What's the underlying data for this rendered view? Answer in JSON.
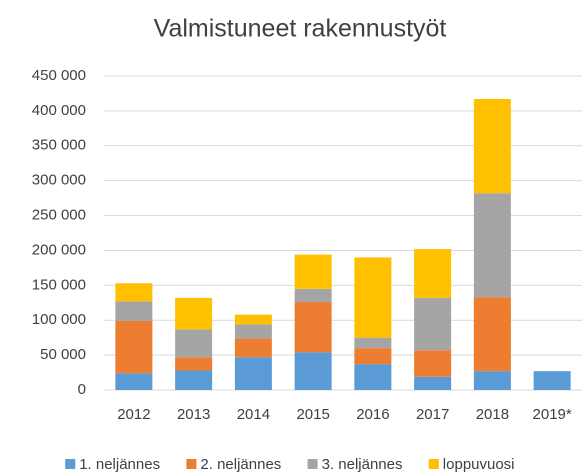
{
  "chart_data": {
    "type": "stacked_bar",
    "title": "Valmistuneet rakennustyöt",
    "categories": [
      "2012",
      "2013",
      "2014",
      "2015",
      "2016",
      "2017",
      "2018",
      "2019*"
    ],
    "series": [
      {
        "name": "1. neljännes",
        "color": "#5b9bd5",
        "values": [
          24000,
          28000,
          47000,
          54000,
          37000,
          19000,
          27000,
          27000
        ]
      },
      {
        "name": "2. neljännes",
        "color": "#ed7d31",
        "values": [
          75000,
          19000,
          27000,
          72000,
          23000,
          38000,
          106000,
          null
        ]
      },
      {
        "name": "3. neljännes",
        "color": "#a5a5a5",
        "values": [
          28000,
          40000,
          20000,
          19000,
          15000,
          75000,
          149000,
          null
        ]
      },
      {
        "name": "loppuvuosi",
        "color": "#ffc000",
        "values": [
          26000,
          45000,
          14000,
          49000,
          115000,
          70000,
          135000,
          null
        ]
      }
    ],
    "ylim": [
      0,
      450000
    ],
    "yticks": [
      0,
      {
        "value": 50000,
        "label": "50 000"
      },
      {
        "value": 100000,
        "label": "100 000"
      },
      {
        "value": 150000,
        "label": "150 000"
      },
      {
        "value": 200000,
        "label": "200 000"
      },
      {
        "value": 250000,
        "label": "250 000"
      },
      {
        "value": 300000,
        "label": "300 000"
      },
      {
        "value": 350000,
        "label": "350 000"
      },
      {
        "value": 400000,
        "label": "400 000"
      },
      {
        "value": 450000,
        "label": "450 000"
      }
    ],
    "grid": true,
    "legend": "bottom"
  }
}
